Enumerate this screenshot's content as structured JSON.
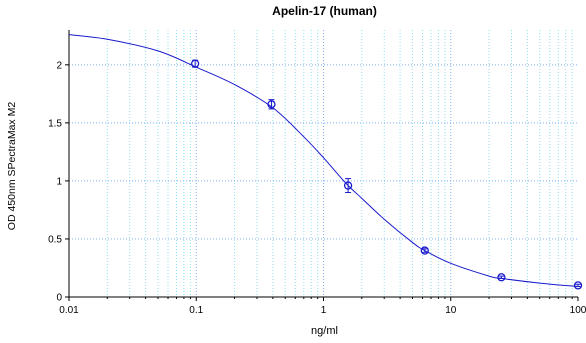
{
  "chart_data": {
    "type": "scatter",
    "title": "Apelin-17 (human)",
    "xlabel": "ng/ml",
    "ylabel": "OD 450nm SPectraMax M2",
    "x_scale": "log",
    "xlim": [
      0.01,
      100
    ],
    "ylim": [
      0,
      2.3
    ],
    "x_ticks": [
      0.01,
      0.1,
      1,
      10,
      100
    ],
    "x_tick_labels": [
      "0.01",
      "0.1",
      "1",
      "10",
      "100"
    ],
    "y_ticks": [
      0,
      0.5,
      1,
      1.5,
      2
    ],
    "y_tick_labels": [
      "0",
      "0.5",
      "1",
      "1.5",
      "2"
    ],
    "grid": true,
    "series": [
      {
        "points": [
          {
            "x": 0.098,
            "y": 2.01,
            "err": 0.03
          },
          {
            "x": 0.39,
            "y": 1.66,
            "err": 0.04
          },
          {
            "x": 1.56,
            "y": 0.96,
            "err": 0.06
          },
          {
            "x": 6.25,
            "y": 0.4,
            "err": 0.015
          },
          {
            "x": 25,
            "y": 0.17,
            "err": 0.01
          },
          {
            "x": 100,
            "y": 0.1,
            "err": 0.01
          }
        ],
        "fit_curve": [
          {
            "x": 0.01,
            "y": 2.26
          },
          {
            "x": 0.02,
            "y": 2.22
          },
          {
            "x": 0.05,
            "y": 2.12
          },
          {
            "x": 0.1,
            "y": 1.98
          },
          {
            "x": 0.2,
            "y": 1.83
          },
          {
            "x": 0.4,
            "y": 1.63
          },
          {
            "x": 0.7,
            "y": 1.38
          },
          {
            "x": 1.0,
            "y": 1.2
          },
          {
            "x": 1.5,
            "y": 0.98
          },
          {
            "x": 2.0,
            "y": 0.85
          },
          {
            "x": 3.0,
            "y": 0.67
          },
          {
            "x": 5.0,
            "y": 0.47
          },
          {
            "x": 6.25,
            "y": 0.4
          },
          {
            "x": 10,
            "y": 0.29
          },
          {
            "x": 20,
            "y": 0.18
          },
          {
            "x": 25,
            "y": 0.16
          },
          {
            "x": 50,
            "y": 0.12
          },
          {
            "x": 100,
            "y": 0.09
          }
        ]
      }
    ],
    "colors": {
      "series": "#1a1acc",
      "grid_major": "#7fb0f5",
      "grid_minor": "#8fe0f5",
      "axes": "#000000"
    }
  }
}
